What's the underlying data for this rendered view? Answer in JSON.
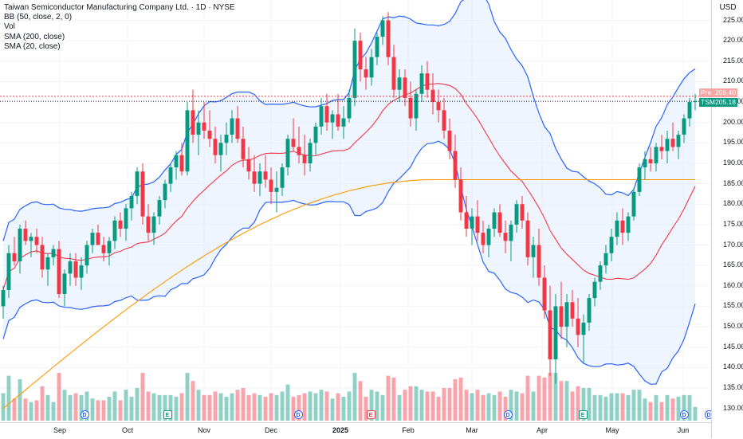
{
  "legend": {
    "title": "Taiwan Semiconductor Manufacturing Company Ltd. · 1D · NYSE",
    "bb": "BB (50, close, 2, 0)",
    "vol": "Vol",
    "sma200": "SMA (200, close)",
    "sma20": "SMA (20, close)"
  },
  "currency": "USD",
  "price_scale": {
    "labels": [
      "225.00",
      "220.00",
      "215.00",
      "210.00",
      "205.00",
      "200.00",
      "195.00",
      "190.00",
      "185.00",
      "180.00",
      "175.00",
      "170.00",
      "165.00",
      "160.00",
      "155.00",
      "150.00",
      "145.00",
      "140.00",
      "135.00",
      "130.00"
    ]
  },
  "tags": {
    "pre_label": "Pre",
    "pre_value": "206.40",
    "tsm_label": "TSM",
    "tsm_value": "205.18"
  },
  "time_axis": {
    "months": [
      {
        "label": "Sep",
        "bold": false
      },
      {
        "label": "Oct",
        "bold": false
      },
      {
        "label": "Nov",
        "bold": false
      },
      {
        "label": "Dec",
        "bold": false
      },
      {
        "label": "2025",
        "bold": true
      },
      {
        "label": "Feb",
        "bold": false
      },
      {
        "label": "Mar",
        "bold": false
      },
      {
        "label": "Apr",
        "bold": false
      },
      {
        "label": "May",
        "bold": false
      },
      {
        "label": "Jun",
        "bold": false
      }
    ]
  },
  "events": [
    {
      "type": "dividend",
      "glyph": "D"
    },
    {
      "type": "earnings",
      "glyph": "E",
      "tone": "green"
    },
    {
      "type": "dividend",
      "glyph": "D"
    },
    {
      "type": "earnings",
      "glyph": "E",
      "tone": "red"
    },
    {
      "type": "dividend",
      "glyph": "D"
    },
    {
      "type": "earnings",
      "glyph": "E",
      "tone": "green"
    },
    {
      "type": "dividend",
      "glyph": "D"
    },
    {
      "type": "dividend",
      "glyph": "D"
    }
  ],
  "colors": {
    "up": "#089981",
    "down": "#f23645",
    "bb": "#2962ff",
    "sma200": "#ff9800",
    "sma20": "#f23645",
    "band_fill": "#e3effd"
  },
  "chart_data": {
    "type": "candlestick",
    "ylim": [
      127,
      229
    ],
    "price_levels": {
      "pre": 206.4,
      "last": 205.18
    },
    "ohlc": [
      [
        155,
        160,
        152,
        159
      ],
      [
        159,
        170,
        157,
        168
      ],
      [
        168,
        172,
        165,
        166
      ],
      [
        166,
        175,
        163,
        174
      ],
      [
        174,
        176,
        170,
        171
      ],
      [
        171,
        173,
        167,
        172
      ],
      [
        172,
        174,
        168,
        170
      ],
      [
        170,
        172,
        162,
        164
      ],
      [
        164,
        168,
        160,
        167
      ],
      [
        167,
        170,
        165,
        169
      ],
      [
        169,
        171,
        157,
        158
      ],
      [
        158,
        164,
        155,
        163
      ],
      [
        163,
        168,
        160,
        166
      ],
      [
        166,
        168,
        160,
        162
      ],
      [
        162,
        167,
        159,
        165
      ],
      [
        165,
        171,
        163,
        170
      ],
      [
        170,
        174,
        168,
        173
      ],
      [
        173,
        175,
        170,
        170
      ],
      [
        170,
        172,
        166,
        168
      ],
      [
        168,
        172,
        165,
        171
      ],
      [
        171,
        177,
        169,
        176
      ],
      [
        176,
        178,
        172,
        174
      ],
      [
        174,
        180,
        171,
        179
      ],
      [
        179,
        183,
        176,
        182
      ],
      [
        182,
        189,
        180,
        188
      ],
      [
        188,
        190,
        175,
        177
      ],
      [
        177,
        180,
        171,
        173
      ],
      [
        173,
        178,
        170,
        177
      ],
      [
        177,
        182,
        175,
        181
      ],
      [
        181,
        186,
        179,
        185
      ],
      [
        185,
        190,
        183,
        189
      ],
      [
        189,
        193,
        186,
        192
      ],
      [
        192,
        195,
        187,
        188
      ],
      [
        188,
        205,
        187,
        203
      ],
      [
        203,
        208,
        195,
        197
      ],
      [
        197,
        203,
        192,
        200
      ],
      [
        200,
        205,
        196,
        198
      ],
      [
        198,
        203,
        194,
        196
      ],
      [
        196,
        199,
        190,
        192
      ],
      [
        192,
        197,
        188,
        195
      ],
      [
        195,
        200,
        192,
        197
      ],
      [
        197,
        203,
        195,
        201
      ],
      [
        201,
        204,
        195,
        196
      ],
      [
        196,
        199,
        189,
        191
      ],
      [
        191,
        194,
        186,
        188
      ],
      [
        188,
        192,
        183,
        185
      ],
      [
        185,
        190,
        182,
        188
      ],
      [
        188,
        192,
        184,
        186
      ],
      [
        186,
        189,
        180,
        183
      ],
      [
        183,
        188,
        178,
        184
      ],
      [
        184,
        190,
        182,
        189
      ],
      [
        189,
        197,
        187,
        196
      ],
      [
        196,
        201,
        193,
        194
      ],
      [
        194,
        199,
        190,
        192
      ],
      [
        192,
        197,
        187,
        190
      ],
      [
        190,
        196,
        188,
        195
      ],
      [
        195,
        200,
        192,
        199
      ],
      [
        199,
        206,
        197,
        204
      ],
      [
        204,
        207,
        198,
        200
      ],
      [
        200,
        203,
        196,
        202
      ],
      [
        202,
        207,
        198,
        199
      ],
      [
        199,
        204,
        196,
        201
      ],
      [
        201,
        208,
        200,
        206
      ],
      [
        206,
        223,
        204,
        220
      ],
      [
        220,
        222,
        210,
        213
      ],
      [
        213,
        216,
        208,
        211
      ],
      [
        211,
        218,
        209,
        216
      ],
      [
        216,
        222,
        214,
        221
      ],
      [
        221,
        226,
        219,
        225
      ],
      [
        225,
        227,
        214,
        216
      ],
      [
        216,
        219,
        206,
        208
      ],
      [
        208,
        213,
        205,
        211
      ],
      [
        211,
        213,
        204,
        206
      ],
      [
        206,
        210,
        199,
        201
      ],
      [
        201,
        208,
        198,
        207
      ],
      [
        207,
        214,
        205,
        212
      ],
      [
        212,
        215,
        206,
        208
      ],
      [
        208,
        212,
        202,
        205
      ],
      [
        205,
        208,
        200,
        203
      ],
      [
        203,
        206,
        196,
        198
      ],
      [
        198,
        201,
        191,
        193
      ],
      [
        193,
        197,
        184,
        186
      ],
      [
        186,
        189,
        176,
        178
      ],
      [
        178,
        182,
        172,
        174
      ],
      [
        174,
        179,
        170,
        177
      ],
      [
        177,
        181,
        171,
        173
      ],
      [
        173,
        176,
        168,
        170
      ],
      [
        170,
        175,
        167,
        174
      ],
      [
        174,
        179,
        172,
        178
      ],
      [
        178,
        180,
        172,
        173
      ],
      [
        173,
        176,
        168,
        171
      ],
      [
        171,
        176,
        166,
        175
      ],
      [
        175,
        181,
        173,
        180
      ],
      [
        180,
        182,
        174,
        176
      ],
      [
        176,
        178,
        165,
        167
      ],
      [
        167,
        172,
        162,
        170
      ],
      [
        170,
        174,
        160,
        162
      ],
      [
        162,
        165,
        152,
        154
      ],
      [
        154,
        160,
        138,
        142
      ],
      [
        142,
        158,
        136,
        155
      ],
      [
        155,
        161,
        147,
        150
      ],
      [
        150,
        158,
        145,
        156
      ],
      [
        156,
        159,
        150,
        152
      ],
      [
        152,
        157,
        145,
        148
      ],
      [
        148,
        153,
        141,
        151
      ],
      [
        151,
        158,
        149,
        157
      ],
      [
        157,
        162,
        155,
        161
      ],
      [
        161,
        166,
        159,
        165
      ],
      [
        165,
        170,
        163,
        168
      ],
      [
        168,
        174,
        166,
        172
      ],
      [
        172,
        178,
        170,
        176
      ],
      [
        176,
        179,
        170,
        173
      ],
      [
        173,
        178,
        171,
        177
      ],
      [
        177,
        184,
        176,
        183
      ],
      [
        183,
        190,
        182,
        189
      ],
      [
        189,
        193,
        186,
        191
      ],
      [
        191,
        194,
        188,
        190
      ],
      [
        190,
        195,
        188,
        194
      ],
      [
        194,
        197,
        191,
        193
      ],
      [
        193,
        198,
        190,
        196
      ],
      [
        196,
        200,
        193,
        194
      ],
      [
        194,
        198,
        191,
        197
      ],
      [
        197,
        202,
        195,
        201
      ],
      [
        201,
        206,
        199,
        205
      ],
      [
        205,
        207,
        203,
        205.18
      ]
    ],
    "volume_scale_max": 100
  }
}
